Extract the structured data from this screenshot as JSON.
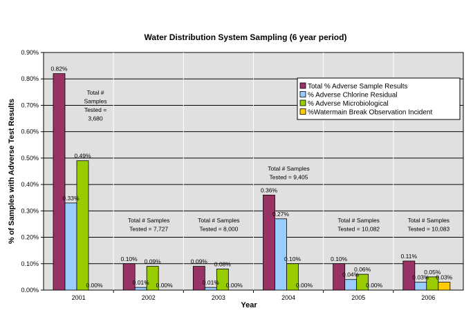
{
  "chart_data": {
    "type": "bar",
    "title": "Water Distribution System Sampling (6 year period)",
    "xlabel": "Year",
    "ylabel": "%  of Samples with Adverse Test Results",
    "ylim": [
      0,
      0.9
    ],
    "yticks": [
      "0.00%",
      "0.10%",
      "0.20%",
      "0.30%",
      "0.40%",
      "0.50%",
      "0.60%",
      "0.70%",
      "0.80%",
      "0.90%"
    ],
    "grid": true,
    "legend_position": "top-right",
    "categories": [
      "2001",
      "2002",
      "2003",
      "2004",
      "2005",
      "2006"
    ],
    "series": [
      {
        "name": "Total % Adverse Sample Results",
        "color": "#993366",
        "values": [
          0.82,
          0.1,
          0.09,
          0.36,
          0.1,
          0.11
        ],
        "labels": [
          "0.82%",
          "0.10%",
          "0.09%",
          "0.36%",
          "0.10%",
          "0.11%"
        ]
      },
      {
        "name": "% Adverse Chlorine Residual",
        "color": "#99CCFF",
        "values": [
          0.33,
          0.01,
          0.01,
          0.27,
          0.04,
          0.03
        ],
        "labels": [
          "0.33%",
          "0.01%",
          "0.01%",
          "0.27%",
          "0.04%",
          "0.03%"
        ]
      },
      {
        "name": "% Adverse Microbiological",
        "color": "#99CC00",
        "values": [
          0.49,
          0.09,
          0.08,
          0.1,
          0.06,
          0.05
        ],
        "labels": [
          "0.49%",
          "0.09%",
          "0.08%",
          "0.10%",
          "0.06%",
          "0.05%"
        ]
      },
      {
        "name": "%Watermain Break Observation Incident",
        "color": "#FFCC00",
        "values": [
          0.0,
          0.0,
          0.0,
          0.0,
          0.0,
          0.03
        ],
        "labels": [
          "0.00%",
          "0.00%",
          "0.00%",
          "0.00%",
          "0.00%",
          "0.03%"
        ]
      }
    ],
    "annotations": [
      {
        "category": "2001",
        "lines": [
          "Total #",
          "Samples",
          "Tested =",
          "3,680"
        ]
      },
      {
        "category": "2002",
        "lines": [
          "Total # Samples",
          "Tested = 7,727"
        ]
      },
      {
        "category": "2003",
        "lines": [
          "Total #  Samples",
          "Tested = 8,000"
        ]
      },
      {
        "category": "2004",
        "lines": [
          "Total #  Samples",
          "Tested = 9,405"
        ]
      },
      {
        "category": "2005",
        "lines": [
          "Total # Samples",
          "Tested = 10,082"
        ]
      },
      {
        "category": "2006",
        "lines": [
          "Total # Samples",
          "Tested = 10,083"
        ]
      }
    ],
    "colors": {
      "plot_background": "#E0E0E0",
      "gridline": "#000000",
      "border": "#000000"
    }
  }
}
